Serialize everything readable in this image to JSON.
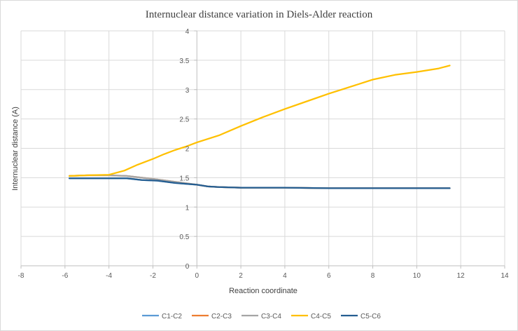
{
  "chart_data": {
    "type": "scatter",
    "title": "Internuclear distance variation in Diels-Alder  reaction",
    "xlabel": "Reaction coordinate",
    "ylabel": "Internuclear distance (A)",
    "xlim": [
      -8,
      14
    ],
    "ylim": [
      0,
      4
    ],
    "x_ticks": [
      -8,
      -6,
      -4,
      -2,
      0,
      2,
      4,
      6,
      8,
      10,
      12,
      14
    ],
    "y_ticks": [
      0,
      0.5,
      1,
      1.5,
      2,
      2.5,
      3,
      3.5,
      4
    ],
    "grid": true,
    "legend_position": "bottom",
    "series": [
      {
        "name": "C1-C2",
        "color": "#5b9bd5",
        "points": [
          [
            -5.8,
            1.49
          ],
          [
            -5,
            1.49
          ],
          [
            -4,
            1.49
          ],
          [
            -3.2,
            1.49
          ],
          [
            -2.5,
            1.46
          ],
          [
            -1.8,
            1.45
          ],
          [
            -1,
            1.41
          ],
          [
            0,
            1.38
          ],
          [
            0.5,
            1.35
          ],
          [
            1,
            1.34
          ],
          [
            2,
            1.33
          ],
          [
            4,
            1.33
          ],
          [
            6,
            1.32
          ],
          [
            8,
            1.32
          ],
          [
            10,
            1.32
          ],
          [
            11.5,
            1.32
          ]
        ]
      },
      {
        "name": "C2-C3",
        "color": "#ed7d31",
        "points": [
          [
            -5.8,
            1.53
          ],
          [
            -5,
            1.54
          ],
          [
            -4,
            1.54
          ],
          [
            -3.2,
            1.53
          ],
          [
            -2.5,
            1.5
          ],
          [
            -1.8,
            1.47
          ],
          [
            -1,
            1.43
          ],
          [
            0,
            1.38
          ],
          [
            0.5,
            1.35
          ],
          [
            1,
            1.34
          ],
          [
            2,
            1.33
          ],
          [
            4,
            1.33
          ],
          [
            6,
            1.32
          ],
          [
            8,
            1.32
          ],
          [
            10,
            1.32
          ],
          [
            11.5,
            1.32
          ]
        ]
      },
      {
        "name": "C3-C4",
        "color": "#a5a5a5",
        "points": [
          [
            -5.8,
            1.53
          ],
          [
            -5,
            1.54
          ],
          [
            -4,
            1.54
          ],
          [
            -3.2,
            1.53
          ],
          [
            -2.5,
            1.5
          ],
          [
            -1.8,
            1.47
          ],
          [
            -1,
            1.43
          ],
          [
            0,
            1.38
          ],
          [
            0.5,
            1.35
          ],
          [
            1,
            1.34
          ],
          [
            2,
            1.33
          ],
          [
            4,
            1.33
          ],
          [
            6,
            1.32
          ],
          [
            8,
            1.32
          ],
          [
            10,
            1.32
          ],
          [
            11.5,
            1.32
          ]
        ]
      },
      {
        "name": "C4-C5",
        "color": "#ffc000",
        "points": [
          [
            -5.8,
            1.53
          ],
          [
            -5,
            1.54
          ],
          [
            -4,
            1.55
          ],
          [
            -3.3,
            1.62
          ],
          [
            -2.7,
            1.72
          ],
          [
            -2,
            1.82
          ],
          [
            -1.5,
            1.9
          ],
          [
            -1,
            1.97
          ],
          [
            -0.5,
            2.03
          ],
          [
            0,
            2.1
          ],
          [
            1,
            2.22
          ],
          [
            2,
            2.38
          ],
          [
            3,
            2.53
          ],
          [
            4,
            2.67
          ],
          [
            5,
            2.8
          ],
          [
            6,
            2.93
          ],
          [
            7,
            3.05
          ],
          [
            8,
            3.17
          ],
          [
            9,
            3.25
          ],
          [
            10,
            3.3
          ],
          [
            11,
            3.36
          ],
          [
            11.5,
            3.41
          ]
        ]
      },
      {
        "name": "C5-C6",
        "color": "#255e91",
        "points": [
          [
            -5.8,
            1.49
          ],
          [
            -5,
            1.49
          ],
          [
            -4,
            1.49
          ],
          [
            -3.2,
            1.49
          ],
          [
            -2.5,
            1.46
          ],
          [
            -1.8,
            1.45
          ],
          [
            -1,
            1.41
          ],
          [
            0,
            1.38
          ],
          [
            0.5,
            1.35
          ],
          [
            1,
            1.34
          ],
          [
            2,
            1.33
          ],
          [
            4,
            1.33
          ],
          [
            6,
            1.32
          ],
          [
            8,
            1.32
          ],
          [
            10,
            1.32
          ],
          [
            11.5,
            1.32
          ]
        ]
      }
    ]
  }
}
